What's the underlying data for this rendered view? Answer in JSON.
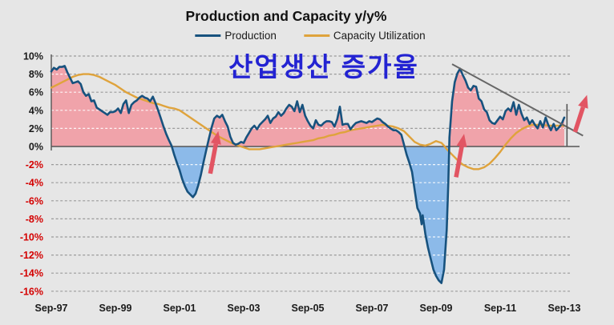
{
  "chart_data": {
    "type": "line",
    "title": "Production and Capacity y/y%",
    "x_axis": {
      "tick_labels": [
        "Sep-97",
        "Sep-99",
        "Sep-01",
        "Sep-03",
        "Sep-05",
        "Sep-07",
        "Sep-09",
        "Sep-11",
        "Sep-13"
      ],
      "months_per_tick": 24,
      "total_months": 192
    },
    "y_axis": {
      "min": -16,
      "max": 10,
      "step": 2,
      "unit": "%",
      "grid": true
    },
    "legend_position": "top",
    "series": [
      {
        "name": "Production",
        "color": "#17527e",
        "area_fill_positive": "#f0a3aa",
        "area_fill_negative": "#8cbae9",
        "points": [
          [
            0,
            8.3
          ],
          [
            1,
            8.7
          ],
          [
            2,
            8.5
          ],
          [
            3,
            8.8
          ],
          [
            4,
            8.8
          ],
          [
            5,
            8.9
          ],
          [
            6,
            8.2
          ],
          [
            7,
            7.6
          ],
          [
            8,
            7.0
          ],
          [
            9,
            7.1
          ],
          [
            10,
            7.2
          ],
          [
            11,
            6.9
          ],
          [
            12,
            6.0
          ],
          [
            13,
            5.6
          ],
          [
            14,
            5.8
          ],
          [
            15,
            5.0
          ],
          [
            16,
            5.1
          ],
          [
            17,
            4.3
          ],
          [
            18,
            4.1
          ],
          [
            19,
            3.9
          ],
          [
            20,
            3.7
          ],
          [
            21,
            3.5
          ],
          [
            22,
            3.8
          ],
          [
            23,
            3.8
          ],
          [
            24,
            3.9
          ],
          [
            25,
            4.2
          ],
          [
            26,
            3.7
          ],
          [
            27,
            4.7
          ],
          [
            28,
            5.1
          ],
          [
            29,
            3.7
          ],
          [
            30,
            4.6
          ],
          [
            31,
            4.9
          ],
          [
            32,
            5.1
          ],
          [
            33,
            5.4
          ],
          [
            34,
            5.6
          ],
          [
            35,
            5.4
          ],
          [
            36,
            5.3
          ],
          [
            37,
            5.0
          ],
          [
            38,
            5.5
          ],
          [
            39,
            4.8
          ],
          [
            40,
            4.0
          ],
          [
            41,
            3.1
          ],
          [
            42,
            2.2
          ],
          [
            43,
            1.4
          ],
          [
            44,
            0.7
          ],
          [
            45,
            0.1
          ],
          [
            46,
            -0.9
          ],
          [
            47,
            -1.8
          ],
          [
            48,
            -2.6
          ],
          [
            49,
            -3.6
          ],
          [
            50,
            -4.4
          ],
          [
            51,
            -5.0
          ],
          [
            52,
            -5.3
          ],
          [
            53,
            -5.6
          ],
          [
            54,
            -5.2
          ],
          [
            55,
            -4.3
          ],
          [
            56,
            -3.1
          ],
          [
            57,
            -1.7
          ],
          [
            58,
            -0.4
          ],
          [
            59,
            0.9
          ],
          [
            60,
            2.1
          ],
          [
            61,
            3.1
          ],
          [
            62,
            3.4
          ],
          [
            63,
            3.2
          ],
          [
            64,
            3.5
          ],
          [
            65,
            2.8
          ],
          [
            66,
            2.2
          ],
          [
            67,
            1.1
          ],
          [
            68,
            0.4
          ],
          [
            69,
            0.2
          ],
          [
            70,
            0.3
          ],
          [
            71,
            0.5
          ],
          [
            72,
            0.4
          ],
          [
            73,
            1.0
          ],
          [
            74,
            1.5
          ],
          [
            75,
            2.0
          ],
          [
            76,
            2.3
          ],
          [
            77,
            1.9
          ],
          [
            78,
            2.4
          ],
          [
            79,
            2.7
          ],
          [
            80,
            3.0
          ],
          [
            81,
            3.4
          ],
          [
            82,
            2.6
          ],
          [
            83,
            3.1
          ],
          [
            84,
            3.3
          ],
          [
            85,
            3.8
          ],
          [
            86,
            3.4
          ],
          [
            87,
            3.7
          ],
          [
            88,
            4.2
          ],
          [
            89,
            4.6
          ],
          [
            90,
            4.4
          ],
          [
            91,
            3.9
          ],
          [
            92,
            5.0
          ],
          [
            93,
            3.8
          ],
          [
            94,
            4.6
          ],
          [
            95,
            3.4
          ],
          [
            96,
            2.8
          ],
          [
            97,
            2.3
          ],
          [
            98,
            2.0
          ],
          [
            99,
            2.9
          ],
          [
            100,
            2.4
          ],
          [
            101,
            2.3
          ],
          [
            102,
            2.6
          ],
          [
            103,
            2.8
          ],
          [
            104,
            2.8
          ],
          [
            105,
            2.7
          ],
          [
            106,
            2.2
          ],
          [
            107,
            3.0
          ],
          [
            108,
            4.4
          ],
          [
            109,
            2.4
          ],
          [
            110,
            2.5
          ],
          [
            111,
            2.5
          ],
          [
            112,
            1.9
          ],
          [
            113,
            2.3
          ],
          [
            114,
            2.6
          ],
          [
            115,
            2.7
          ],
          [
            116,
            2.8
          ],
          [
            117,
            2.7
          ],
          [
            118,
            2.6
          ],
          [
            119,
            2.8
          ],
          [
            120,
            2.7
          ],
          [
            121,
            2.9
          ],
          [
            122,
            3.1
          ],
          [
            123,
            3.0
          ],
          [
            124,
            2.7
          ],
          [
            125,
            2.5
          ],
          [
            126,
            2.2
          ],
          [
            127,
            2.0
          ],
          [
            128,
            1.8
          ],
          [
            129,
            1.8
          ],
          [
            130,
            1.6
          ],
          [
            131,
            1.3
          ],
          [
            132,
            0.2
          ],
          [
            133,
            -0.9
          ],
          [
            134,
            -1.8
          ],
          [
            135,
            -2.8
          ],
          [
            136,
            -4.8
          ],
          [
            137,
            -6.8
          ],
          [
            138,
            -7.4
          ],
          [
            138.6,
            -8.6
          ],
          [
            139,
            -7.6
          ],
          [
            140,
            -9.7
          ],
          [
            141,
            -11.2
          ],
          [
            142,
            -12.4
          ],
          [
            143,
            -13.6
          ],
          [
            144,
            -14.3
          ],
          [
            145,
            -14.8
          ],
          [
            146,
            -15.1
          ],
          [
            147,
            -13.6
          ],
          [
            148,
            -9.2
          ],
          [
            148.6,
            -4.0
          ],
          [
            149,
            1.0
          ],
          [
            150,
            5.0
          ],
          [
            151,
            7.1
          ],
          [
            152,
            8.1
          ],
          [
            153,
            8.6
          ],
          [
            154,
            7.9
          ],
          [
            155,
            7.3
          ],
          [
            156,
            6.5
          ],
          [
            157,
            6.2
          ],
          [
            158,
            6.7
          ],
          [
            159,
            6.6
          ],
          [
            160,
            5.3
          ],
          [
            161,
            5.0
          ],
          [
            162,
            4.1
          ],
          [
            163,
            3.8
          ],
          [
            164,
            2.9
          ],
          [
            165,
            2.6
          ],
          [
            166,
            2.5
          ],
          [
            167,
            2.9
          ],
          [
            168,
            3.3
          ],
          [
            169,
            3.0
          ],
          [
            170,
            3.9
          ],
          [
            171,
            4.2
          ],
          [
            172,
            3.9
          ],
          [
            173,
            4.9
          ],
          [
            174,
            3.5
          ],
          [
            175,
            4.6
          ],
          [
            176,
            3.6
          ],
          [
            177,
            2.9
          ],
          [
            178,
            3.2
          ],
          [
            179,
            2.5
          ],
          [
            180,
            2.9
          ],
          [
            181,
            2.4
          ],
          [
            182,
            2.0
          ],
          [
            183,
            2.8
          ],
          [
            184,
            2.1
          ],
          [
            185,
            3.2
          ],
          [
            186,
            2.4
          ],
          [
            187,
            1.8
          ],
          [
            188,
            2.5
          ],
          [
            189,
            1.8
          ],
          [
            190,
            2.1
          ],
          [
            191,
            2.5
          ],
          [
            192,
            3.2
          ]
        ]
      },
      {
        "name": "Capacity Utilization",
        "color": "#dfa33c",
        "points": [
          [
            0,
            6.5
          ],
          [
            2,
            6.8
          ],
          [
            4,
            7.1
          ],
          [
            6,
            7.4
          ],
          [
            8,
            7.7
          ],
          [
            10,
            7.9
          ],
          [
            12,
            8.0
          ],
          [
            14,
            8.0
          ],
          [
            16,
            7.9
          ],
          [
            18,
            7.7
          ],
          [
            20,
            7.4
          ],
          [
            22,
            7.1
          ],
          [
            24,
            6.8
          ],
          [
            26,
            6.4
          ],
          [
            28,
            6.0
          ],
          [
            30,
            5.7
          ],
          [
            32,
            5.4
          ],
          [
            34,
            5.2
          ],
          [
            36,
            5.0
          ],
          [
            38,
            4.8
          ],
          [
            40,
            4.7
          ],
          [
            42,
            4.5
          ],
          [
            44,
            4.3
          ],
          [
            46,
            4.2
          ],
          [
            48,
            4.0
          ],
          [
            50,
            3.6
          ],
          [
            52,
            3.2
          ],
          [
            54,
            2.8
          ],
          [
            56,
            2.4
          ],
          [
            58,
            2.0
          ],
          [
            60,
            1.6
          ],
          [
            62,
            1.2
          ],
          [
            64,
            0.9
          ],
          [
            66,
            0.6
          ],
          [
            68,
            0.3
          ],
          [
            70,
            0.1
          ],
          [
            72,
            -0.1
          ],
          [
            74,
            -0.3
          ],
          [
            76,
            -0.3
          ],
          [
            78,
            -0.3
          ],
          [
            80,
            -0.2
          ],
          [
            82,
            -0.1
          ],
          [
            84,
            0.0
          ],
          [
            86,
            0.1
          ],
          [
            88,
            0.2
          ],
          [
            90,
            0.3
          ],
          [
            92,
            0.4
          ],
          [
            94,
            0.5
          ],
          [
            96,
            0.6
          ],
          [
            98,
            0.7
          ],
          [
            100,
            0.9
          ],
          [
            102,
            1.0
          ],
          [
            104,
            1.2
          ],
          [
            106,
            1.3
          ],
          [
            108,
            1.5
          ],
          [
            110,
            1.6
          ],
          [
            112,
            1.8
          ],
          [
            114,
            1.9
          ],
          [
            116,
            2.0
          ],
          [
            118,
            2.1
          ],
          [
            120,
            2.2
          ],
          [
            122,
            2.3
          ],
          [
            124,
            2.4
          ],
          [
            126,
            2.3
          ],
          [
            128,
            2.2
          ],
          [
            130,
            2.0
          ],
          [
            132,
            1.7
          ],
          [
            134,
            1.1
          ],
          [
            136,
            0.5
          ],
          [
            138,
            0.2
          ],
          [
            140,
            0.1
          ],
          [
            142,
            0.3
          ],
          [
            144,
            0.6
          ],
          [
            146,
            0.4
          ],
          [
            147,
            0.1
          ],
          [
            148,
            -0.3
          ],
          [
            150,
            -0.9
          ],
          [
            152,
            -1.5
          ],
          [
            154,
            -2.0
          ],
          [
            156,
            -2.3
          ],
          [
            158,
            -2.5
          ],
          [
            160,
            -2.5
          ],
          [
            162,
            -2.3
          ],
          [
            164,
            -1.9
          ],
          [
            166,
            -1.3
          ],
          [
            168,
            -0.6
          ],
          [
            170,
            0.2
          ],
          [
            172,
            0.9
          ],
          [
            174,
            1.5
          ],
          [
            176,
            1.9
          ],
          [
            178,
            2.2
          ],
          [
            180,
            2.4
          ],
          [
            182,
            2.4
          ],
          [
            184,
            2.4
          ],
          [
            186,
            2.3
          ],
          [
            188,
            2.3
          ],
          [
            190,
            2.3
          ],
          [
            192,
            2.3
          ]
        ]
      }
    ],
    "annotations": {
      "korean_label": "산업생산 증가율",
      "trendline": {
        "from_month": 150,
        "from_value": 9.1,
        "to_month": 199,
        "to_value": 1.2
      },
      "end_vertical_line": {
        "month": 193,
        "value_from": 0,
        "value_to": 4.7
      },
      "arrows": [
        {
          "from_month": 59.5,
          "from_value": -3.0,
          "to_month": 62.5,
          "to_value": 1.7
        },
        {
          "from_month": 151.5,
          "from_value": -3.4,
          "to_month": 154.5,
          "to_value": 1.4
        },
        {
          "from_month": 196,
          "from_value": 1.6,
          "to_month": 200.5,
          "to_value": 5.7
        }
      ]
    },
    "colors": {
      "background": "#e6e6e6",
      "gridline": "#9a9a9a",
      "gridline_on_fill": "#ffffff",
      "axis_line": "#555555",
      "tick_label_positive": "#1a1a1a",
      "tick_label_negative": "#d40000",
      "trendline": "#666666",
      "arrow": "#e25563",
      "korean_text": "#2323d2"
    }
  }
}
